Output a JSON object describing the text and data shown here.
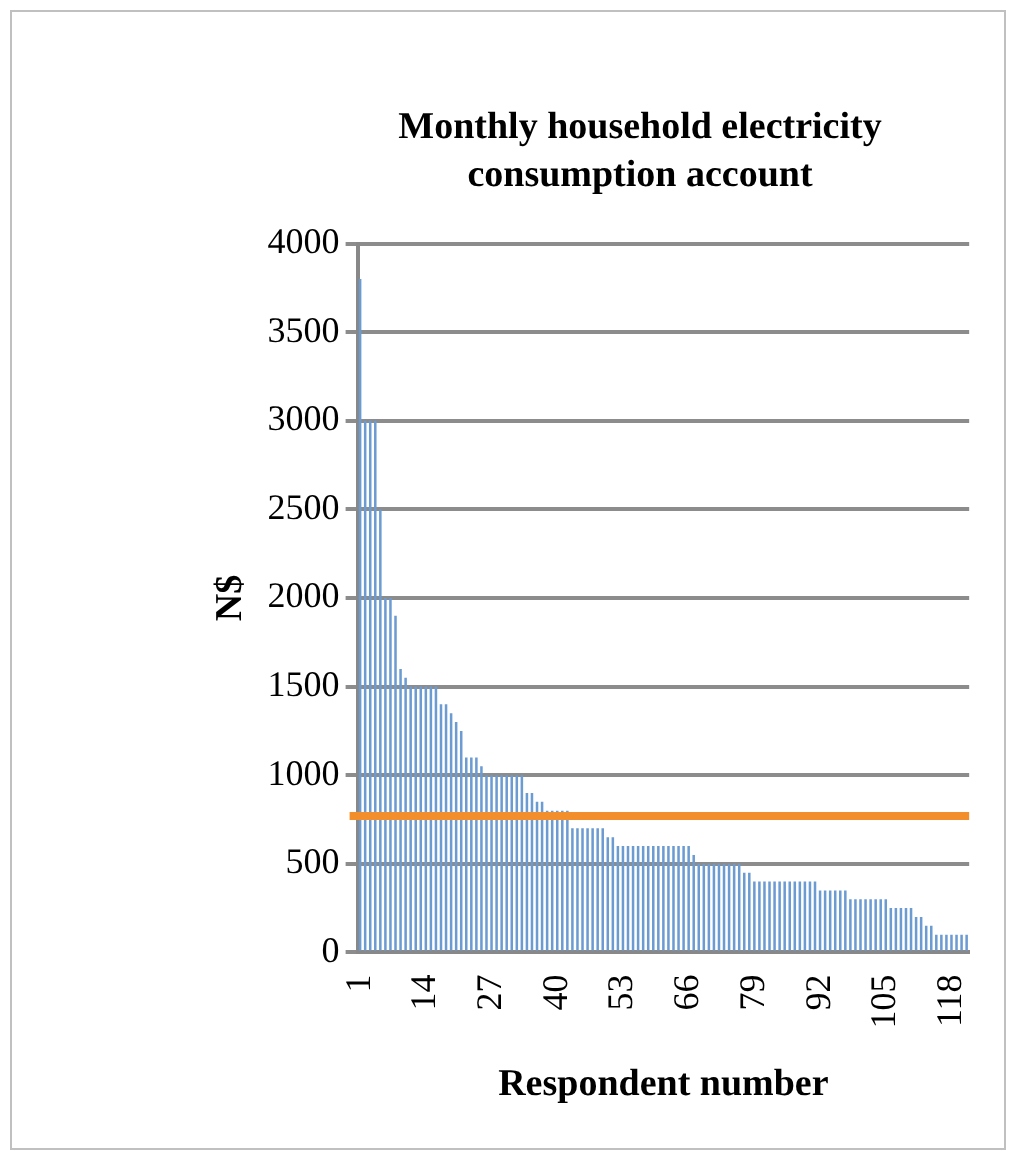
{
  "chart_data": {
    "type": "bar",
    "title": "Monthly household electricity consumption account",
    "xlabel": "Respondent number",
    "ylabel": "N$",
    "categories": [
      "1",
      null,
      null,
      null,
      null,
      null,
      null,
      null,
      null,
      null,
      null,
      null,
      null,
      "14",
      null,
      null,
      null,
      null,
      null,
      null,
      null,
      null,
      null,
      null,
      null,
      null,
      "27",
      null,
      null,
      null,
      null,
      null,
      null,
      null,
      null,
      null,
      null,
      null,
      null,
      "40",
      null,
      null,
      null,
      null,
      null,
      null,
      null,
      null,
      null,
      null,
      null,
      null,
      "53",
      null,
      null,
      null,
      null,
      null,
      null,
      null,
      null,
      null,
      null,
      null,
      null,
      "66",
      null,
      null,
      null,
      null,
      null,
      null,
      null,
      null,
      null,
      null,
      null,
      null,
      "79",
      null,
      null,
      null,
      null,
      null,
      null,
      null,
      null,
      null,
      null,
      null,
      null,
      "92",
      null,
      null,
      null,
      null,
      null,
      null,
      null,
      null,
      null,
      null,
      null,
      null,
      "105",
      null,
      null,
      null,
      null,
      null,
      null,
      null,
      null,
      null,
      null,
      null,
      null,
      "118",
      null,
      null,
      null
    ],
    "values": [
      3800,
      3000,
      3000,
      3000,
      2500,
      2000,
      2000,
      1900,
      1600,
      1550,
      1500,
      1500,
      1500,
      1500,
      1500,
      1500,
      1400,
      1400,
      1350,
      1300,
      1250,
      1100,
      1100,
      1100,
      1050,
      1000,
      1000,
      1000,
      1000,
      1000,
      1000,
      1000,
      1000,
      900,
      900,
      850,
      850,
      800,
      800,
      800,
      800,
      800,
      700,
      700,
      700,
      700,
      700,
      700,
      700,
      650,
      650,
      600,
      600,
      600,
      600,
      600,
      600,
      600,
      600,
      600,
      600,
      600,
      600,
      600,
      600,
      600,
      550,
      500,
      500,
      500,
      500,
      500,
      500,
      500,
      500,
      500,
      450,
      450,
      400,
      400,
      400,
      400,
      400,
      400,
      400,
      400,
      400,
      400,
      400,
      400,
      400,
      350,
      350,
      350,
      350,
      350,
      350,
      300,
      300,
      300,
      300,
      300,
      300,
      300,
      300,
      250,
      250,
      250,
      250,
      250,
      200,
      200,
      150,
      150,
      100,
      100,
      100,
      100,
      100,
      100,
      100
    ],
    "color": "#6c9bd2",
    "ylim": [
      0,
      4000
    ],
    "yticks": [
      0,
      500,
      1000,
      1500,
      2000,
      2500,
      3000,
      3500,
      4000
    ],
    "grid": "y",
    "legend": false,
    "ref_lines": [
      {
        "axis": "y",
        "value": 770,
        "color": "#f28e2c"
      }
    ]
  }
}
